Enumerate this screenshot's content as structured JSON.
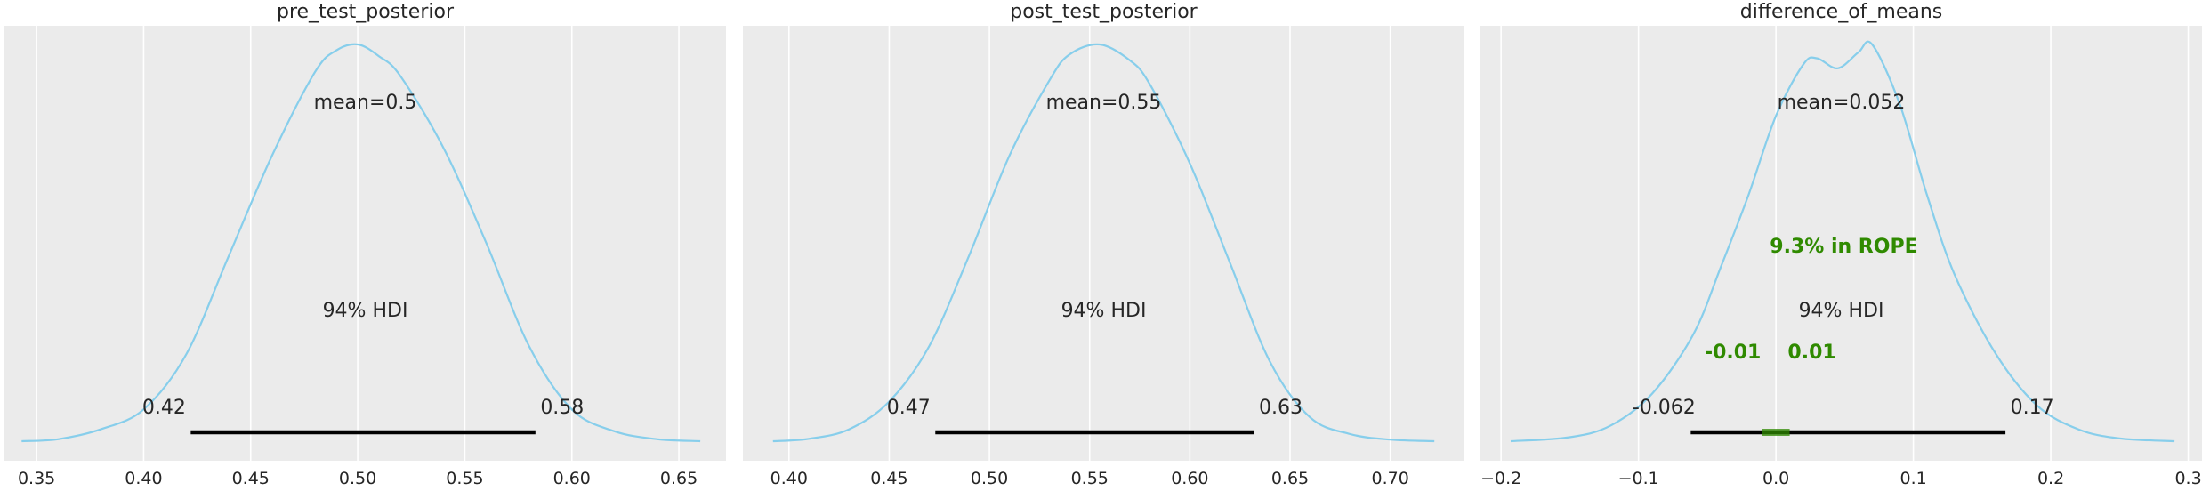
{
  "chart_data": [
    {
      "type": "area",
      "title": "pre_test_posterior",
      "xlim": [
        0.335,
        0.672
      ],
      "x_ticks": [
        0.35,
        0.4,
        0.45,
        0.5,
        0.55,
        0.6,
        0.65
      ],
      "x_tick_labels": [
        "0.35",
        "0.40",
        "0.45",
        "0.50",
        "0.55",
        "0.60",
        "0.65"
      ],
      "grid": true,
      "density": {
        "x": [
          0.343,
          0.36,
          0.38,
          0.4,
          0.42,
          0.44,
          0.46,
          0.48,
          0.49,
          0.5,
          0.51,
          0.52,
          0.54,
          0.56,
          0.58,
          0.6,
          0.62,
          0.64,
          0.66
        ],
        "y": [
          0.0,
          0.005,
          0.03,
          0.08,
          0.22,
          0.47,
          0.72,
          0.93,
          0.985,
          1.0,
          0.97,
          0.92,
          0.74,
          0.5,
          0.24,
          0.08,
          0.025,
          0.005,
          0.0
        ]
      },
      "mean_label": "mean=0.5",
      "hdi_label": "94% HDI",
      "hdi": [
        0.422,
        0.583
      ],
      "hdi_low_label": "0.42",
      "hdi_high_label": "0.58",
      "line_color": "#87ceeb"
    },
    {
      "type": "area",
      "title": "post_test_posterior",
      "xlim": [
        0.377,
        0.737
      ],
      "x_ticks": [
        0.4,
        0.45,
        0.5,
        0.55,
        0.6,
        0.65,
        0.7
      ],
      "x_tick_labels": [
        "0.40",
        "0.45",
        "0.50",
        "0.55",
        "0.60",
        "0.65",
        "0.70"
      ],
      "grid": true,
      "density": {
        "x": [
          0.392,
          0.41,
          0.43,
          0.45,
          0.47,
          0.49,
          0.51,
          0.53,
          0.54,
          0.555,
          0.57,
          0.58,
          0.6,
          0.62,
          0.64,
          0.66,
          0.68,
          0.7,
          0.722
        ],
        "y": [
          0.0,
          0.006,
          0.03,
          0.1,
          0.24,
          0.47,
          0.72,
          0.91,
          0.975,
          1.0,
          0.96,
          0.9,
          0.7,
          0.45,
          0.2,
          0.06,
          0.018,
          0.004,
          0.0
        ]
      },
      "mean_label": "mean=0.55",
      "hdi_label": "94% HDI",
      "hdi": [
        0.473,
        0.632
      ],
      "hdi_low_label": "0.47",
      "hdi_high_label": "0.63",
      "line_color": "#87ceeb"
    },
    {
      "type": "area",
      "title": "difference_of_means",
      "xlim": [
        -0.215,
        0.31
      ],
      "x_ticks": [
        -0.2,
        -0.1,
        0.0,
        0.1,
        0.2,
        0.3
      ],
      "x_tick_labels": [
        "−0.2",
        "−0.1",
        "0.0",
        "0.1",
        "0.2",
        "0.3"
      ],
      "grid": true,
      "density": {
        "x": [
          -0.193,
          -0.15,
          -0.12,
          -0.09,
          -0.06,
          -0.04,
          -0.02,
          0.0,
          0.02,
          0.03,
          0.045,
          0.06,
          0.07,
          0.09,
          0.11,
          0.13,
          0.16,
          0.19,
          0.22,
          0.25,
          0.29
        ],
        "y": [
          0.0,
          0.01,
          0.04,
          0.12,
          0.27,
          0.44,
          0.62,
          0.82,
          0.95,
          0.965,
          0.94,
          0.98,
          1.0,
          0.85,
          0.62,
          0.42,
          0.22,
          0.09,
          0.03,
          0.007,
          0.0
        ]
      },
      "mean_label": "mean=0.052",
      "hdi_label": "94% HDI",
      "hdi": [
        -0.062,
        0.167
      ],
      "hdi_low_label": "-0.062",
      "hdi_high_label": "0.17",
      "rope": [
        -0.01,
        0.01
      ],
      "rope_label": "9.3% in ROPE",
      "rope_low_label": "-0.01",
      "rope_high_label": "0.01",
      "rope_color": "#2f8a00",
      "line_color": "#87ceeb"
    }
  ]
}
